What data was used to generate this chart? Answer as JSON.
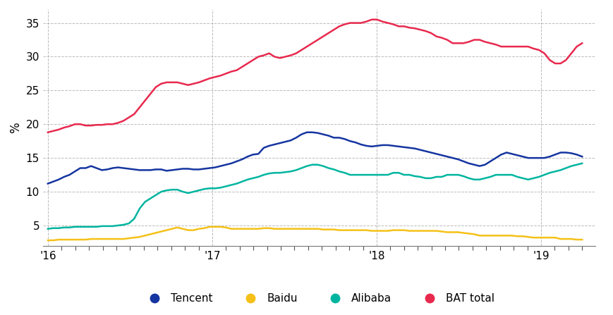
{
  "ylabel": "%",
  "ylim": [
    2,
    37
  ],
  "yticks": [
    5,
    10,
    15,
    20,
    25,
    30,
    35
  ],
  "colors": {
    "Tencent": "#1535a0",
    "Alibaba": "#00b5a0",
    "Baidu": "#f5c118",
    "BAT total": "#e8294e"
  },
  "background_color": "#ffffff",
  "grid_color": "#aaaaaa",
  "tencent": [
    11.2,
    11.5,
    11.8,
    12.2,
    12.5,
    13.0,
    13.5,
    13.5,
    13.8,
    13.5,
    13.2,
    13.3,
    13.5,
    13.6,
    13.5,
    13.4,
    13.3,
    13.2,
    13.2,
    13.2,
    13.3,
    13.3,
    13.1,
    13.2,
    13.3,
    13.4,
    13.4,
    13.3,
    13.3,
    13.4,
    13.5,
    13.6,
    13.8,
    14.0,
    14.2,
    14.5,
    14.8,
    15.2,
    15.5,
    15.6,
    16.5,
    16.8,
    17.0,
    17.2,
    17.4,
    17.6,
    18.0,
    18.5,
    18.8,
    18.8,
    18.7,
    18.5,
    18.3,
    18.0,
    18.0,
    17.8,
    17.5,
    17.3,
    17.0,
    16.8,
    16.7,
    16.8,
    16.9,
    16.9,
    16.8,
    16.7,
    16.6,
    16.5,
    16.4,
    16.2,
    16.0,
    15.8,
    15.6,
    15.4,
    15.2,
    15.0,
    14.8,
    14.5,
    14.2,
    14.0,
    13.8,
    14.0,
    14.5,
    15.0,
    15.5,
    15.8,
    15.6,
    15.4,
    15.2,
    15.0,
    15.0,
    15.0,
    15.0,
    15.2,
    15.5,
    15.8,
    15.8,
    15.7,
    15.5,
    15.2
  ],
  "alibaba": [
    4.5,
    4.6,
    4.6,
    4.7,
    4.7,
    4.8,
    4.8,
    4.8,
    4.8,
    4.8,
    4.9,
    4.9,
    4.9,
    5.0,
    5.1,
    5.3,
    6.0,
    7.5,
    8.5,
    9.0,
    9.5,
    10.0,
    10.2,
    10.3,
    10.3,
    10.0,
    9.8,
    10.0,
    10.2,
    10.4,
    10.5,
    10.5,
    10.6,
    10.8,
    11.0,
    11.2,
    11.5,
    11.8,
    12.0,
    12.2,
    12.5,
    12.7,
    12.8,
    12.8,
    12.9,
    13.0,
    13.2,
    13.5,
    13.8,
    14.0,
    14.0,
    13.8,
    13.5,
    13.3,
    13.0,
    12.8,
    12.5,
    12.5,
    12.5,
    12.5,
    12.5,
    12.5,
    12.5,
    12.5,
    12.8,
    12.8,
    12.5,
    12.5,
    12.3,
    12.2,
    12.0,
    12.0,
    12.2,
    12.2,
    12.5,
    12.5,
    12.5,
    12.3,
    12.0,
    11.8,
    11.8,
    12.0,
    12.2,
    12.5,
    12.5,
    12.5,
    12.5,
    12.2,
    12.0,
    11.8,
    12.0,
    12.2,
    12.5,
    12.8,
    13.0,
    13.2,
    13.5,
    13.8,
    14.0,
    14.2
  ],
  "baidu": [
    2.8,
    2.8,
    2.9,
    2.9,
    2.9,
    2.9,
    2.9,
    2.9,
    3.0,
    3.0,
    3.0,
    3.0,
    3.0,
    3.0,
    3.0,
    3.1,
    3.2,
    3.3,
    3.5,
    3.7,
    3.9,
    4.1,
    4.3,
    4.5,
    4.7,
    4.5,
    4.3,
    4.3,
    4.5,
    4.6,
    4.8,
    4.8,
    4.8,
    4.7,
    4.5,
    4.5,
    4.5,
    4.5,
    4.5,
    4.5,
    4.6,
    4.6,
    4.5,
    4.5,
    4.5,
    4.5,
    4.5,
    4.5,
    4.5,
    4.5,
    4.5,
    4.4,
    4.4,
    4.4,
    4.3,
    4.3,
    4.3,
    4.3,
    4.3,
    4.3,
    4.2,
    4.2,
    4.2,
    4.2,
    4.3,
    4.3,
    4.3,
    4.2,
    4.2,
    4.2,
    4.2,
    4.2,
    4.2,
    4.1,
    4.0,
    4.0,
    4.0,
    3.9,
    3.8,
    3.7,
    3.5,
    3.5,
    3.5,
    3.5,
    3.5,
    3.5,
    3.5,
    3.4,
    3.4,
    3.3,
    3.2,
    3.2,
    3.2,
    3.2,
    3.2,
    3.0,
    3.0,
    3.0,
    2.9,
    2.9
  ],
  "bat_total": [
    18.8,
    19.0,
    19.2,
    19.5,
    19.7,
    20.0,
    20.0,
    19.8,
    19.8,
    19.9,
    19.9,
    20.0,
    20.0,
    20.2,
    20.5,
    21.0,
    21.5,
    22.5,
    23.5,
    24.5,
    25.5,
    26.0,
    26.2,
    26.2,
    26.2,
    26.0,
    25.8,
    26.0,
    26.2,
    26.5,
    26.8,
    27.0,
    27.2,
    27.5,
    27.8,
    28.0,
    28.5,
    29.0,
    29.5,
    30.0,
    30.2,
    30.5,
    30.0,
    29.8,
    30.0,
    30.2,
    30.5,
    31.0,
    31.5,
    32.0,
    32.5,
    33.0,
    33.5,
    34.0,
    34.5,
    34.8,
    35.0,
    35.0,
    35.0,
    35.2,
    35.5,
    35.5,
    35.2,
    35.0,
    34.8,
    34.5,
    34.5,
    34.3,
    34.2,
    34.0,
    33.8,
    33.5,
    33.0,
    32.8,
    32.5,
    32.0,
    32.0,
    32.0,
    32.2,
    32.5,
    32.5,
    32.2,
    32.0,
    31.8,
    31.5,
    31.5,
    31.5,
    31.5,
    31.5,
    31.5,
    31.2,
    31.0,
    30.5,
    29.5,
    29.0,
    29.0,
    29.5,
    30.5,
    31.5,
    32.0
  ],
  "n_points": 100,
  "xlim_start": 2016.0,
  "xlim_end": 2019.25,
  "xtick_positions": [
    2016,
    2017,
    2018,
    2019
  ],
  "xtick_labels": [
    "'16",
    "'17",
    "'18",
    "'19"
  ]
}
